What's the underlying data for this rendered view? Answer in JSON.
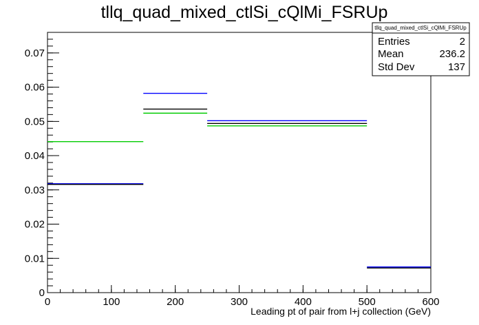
{
  "chart_data": {
    "type": "step",
    "title": "tllq_quad_mixed_ctlSi_cQlMi_FSRUp",
    "xlabel": "Leading pt of pair from l+j collection (GeV)",
    "ylabel": "",
    "xlim": [
      0,
      600
    ],
    "ylim": [
      0,
      0.076
    ],
    "x_ticks": [
      0,
      100,
      200,
      300,
      400,
      500,
      600
    ],
    "x_tick_labels": [
      "0",
      "100",
      "200",
      "300",
      "400",
      "500",
      "600"
    ],
    "y_ticks": [
      0,
      0.01,
      0.02,
      0.03,
      0.04,
      0.05,
      0.06,
      0.07
    ],
    "y_tick_labels": [
      "0",
      "0.01",
      "0.02",
      "0.03",
      "0.04",
      "0.05",
      "0.06",
      "0.07"
    ],
    "bin_edges": [
      0,
      150,
      250,
      500,
      600
    ],
    "series": [
      {
        "color": "#0000ff",
        "values": [
          0.0318,
          0.0582,
          0.0502,
          0.0075
        ]
      },
      {
        "color": "#000000",
        "values": [
          0.0316,
          0.0536,
          0.0494,
          0.0072
        ]
      },
      {
        "color": "#00cc00",
        "values": [
          0.0441,
          0.0524,
          0.0487,
          0.0
        ]
      }
    ],
    "stats": {
      "title": "tllq_quad_mixed_ctlSi_cQlMi_FSRUp",
      "rows": [
        {
          "label": "Entries",
          "value": "2"
        },
        {
          "label": "Mean",
          "value": "236.2"
        },
        {
          "label": "Std Dev",
          "value": "137"
        }
      ]
    }
  }
}
